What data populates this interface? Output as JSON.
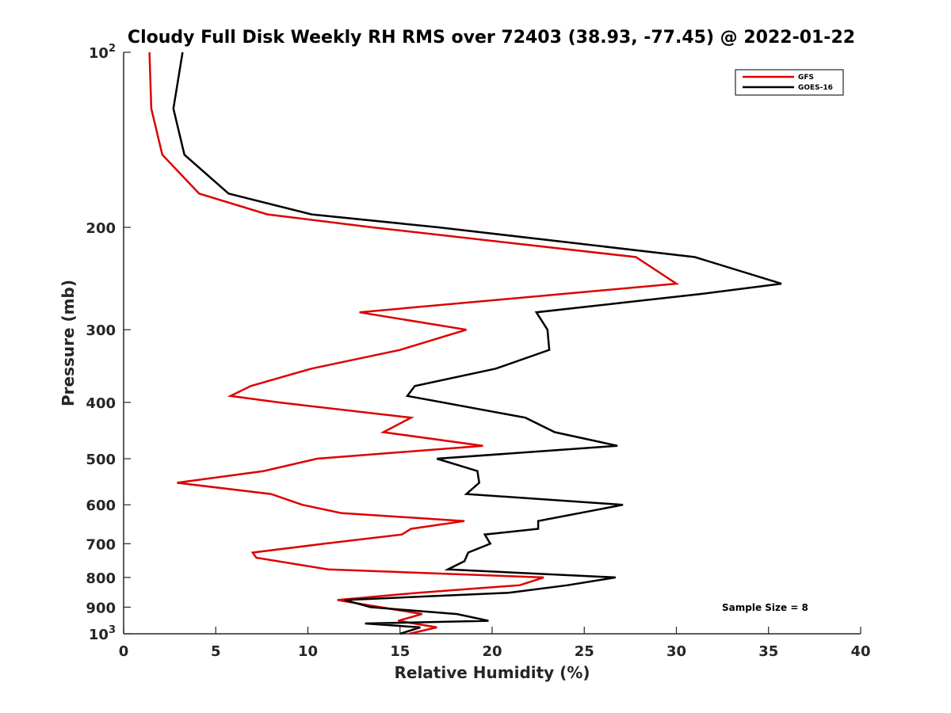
{
  "chart_data": {
    "type": "line",
    "title": "Cloudy Full Disk Weekly RH RMS over 72403 (38.93, -77.45) @ 2022-01-22",
    "xlabel": "Relative Humidity (%)",
    "ylabel": "Pressure (mb)",
    "xlim": [
      0,
      40
    ],
    "ylim": [
      100,
      1000
    ],
    "y_scale": "log",
    "y_reversed": true,
    "grid": false,
    "legend_position": "top-right",
    "annotation": "Sample Size = 8",
    "x_ticks": [
      0,
      5,
      10,
      15,
      20,
      25,
      30,
      35,
      40
    ],
    "x_tick_labels": [
      "0",
      "5",
      "10",
      "15",
      "20",
      "25",
      "30",
      "35",
      "40"
    ],
    "y_ticks": [
      100,
      200,
      300,
      400,
      500,
      600,
      700,
      800,
      900,
      1000
    ],
    "y_tick_labels": [
      {
        "base": "10",
        "exp": "2"
      },
      {
        "base": "200",
        "exp": ""
      },
      {
        "base": "300",
        "exp": ""
      },
      {
        "base": "400",
        "exp": ""
      },
      {
        "base": "500",
        "exp": ""
      },
      {
        "base": "600",
        "exp": ""
      },
      {
        "base": "700",
        "exp": ""
      },
      {
        "base": "800",
        "exp": ""
      },
      {
        "base": "900",
        "exp": ""
      },
      {
        "base": "10",
        "exp": "3"
      }
    ],
    "series": [
      {
        "name": "GFS",
        "color": "#dd0000",
        "points": [
          [
            1.4,
            100
          ],
          [
            1.5,
            125
          ],
          [
            2.1,
            150
          ],
          [
            4.1,
            175
          ],
          [
            7.8,
            190
          ],
          [
            13.5,
            200
          ],
          [
            27.8,
            225
          ],
          [
            30.0,
            250
          ],
          [
            12.8,
            280
          ],
          [
            18.6,
            300
          ],
          [
            15.0,
            325
          ],
          [
            10.2,
            350
          ],
          [
            6.9,
            375
          ],
          [
            5.8,
            390
          ],
          [
            8.4,
            400
          ],
          [
            15.6,
            425
          ],
          [
            14.1,
            450
          ],
          [
            19.5,
            475
          ],
          [
            10.5,
            500
          ],
          [
            7.6,
            525
          ],
          [
            2.9,
            550
          ],
          [
            8.0,
            575
          ],
          [
            9.7,
            600
          ],
          [
            11.8,
            620
          ],
          [
            18.5,
            640
          ],
          [
            15.6,
            660
          ],
          [
            15.1,
            675
          ],
          [
            10.9,
            700
          ],
          [
            7.0,
            725
          ],
          [
            7.2,
            740
          ],
          [
            11.1,
            775
          ],
          [
            22.8,
            800
          ],
          [
            21.5,
            825
          ],
          [
            16.0,
            850
          ],
          [
            11.6,
            875
          ],
          [
            16.2,
            925
          ],
          [
            14.9,
            950
          ],
          [
            17.0,
            975
          ],
          [
            15.5,
            1000
          ]
        ]
      },
      {
        "name": "GOES-16",
        "color": "#000000",
        "points": [
          [
            3.2,
            100
          ],
          [
            2.7,
            125
          ],
          [
            3.3,
            150
          ],
          [
            5.7,
            175
          ],
          [
            10.2,
            190
          ],
          [
            17.1,
            200
          ],
          [
            31.0,
            225
          ],
          [
            35.7,
            250
          ],
          [
            31.5,
            260
          ],
          [
            22.4,
            280
          ],
          [
            23.0,
            300
          ],
          [
            23.1,
            325
          ],
          [
            20.2,
            350
          ],
          [
            15.8,
            375
          ],
          [
            15.4,
            390
          ],
          [
            17.3,
            400
          ],
          [
            21.8,
            425
          ],
          [
            23.4,
            450
          ],
          [
            26.8,
            475
          ],
          [
            17.0,
            500
          ],
          [
            19.2,
            525
          ],
          [
            19.3,
            550
          ],
          [
            18.6,
            575
          ],
          [
            27.1,
            600
          ],
          [
            22.5,
            640
          ],
          [
            22.5,
            660
          ],
          [
            19.6,
            675
          ],
          [
            19.9,
            700
          ],
          [
            18.7,
            725
          ],
          [
            18.5,
            750
          ],
          [
            17.6,
            775
          ],
          [
            26.7,
            800
          ],
          [
            24.1,
            825
          ],
          [
            20.9,
            850
          ],
          [
            12.0,
            875
          ],
          [
            13.4,
            900
          ],
          [
            18.1,
            925
          ],
          [
            19.8,
            950
          ],
          [
            13.1,
            960
          ],
          [
            16.1,
            975
          ],
          [
            15.0,
            1000
          ]
        ]
      }
    ]
  }
}
